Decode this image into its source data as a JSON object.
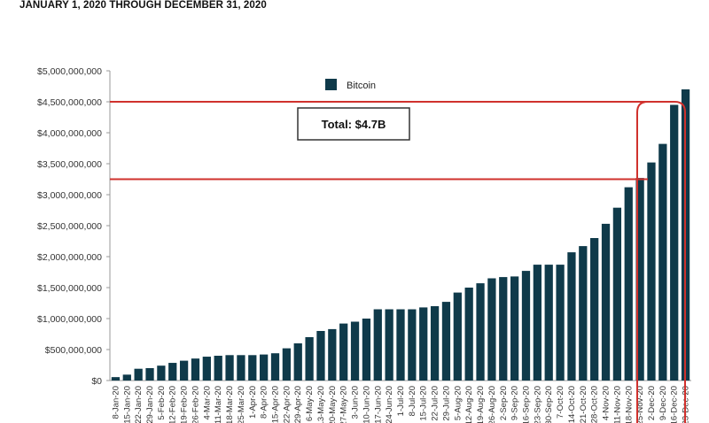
{
  "subtitle": "JANUARY 1, 2020 THROUGH DECEMBER 31, 2020",
  "colors": {
    "bar": "#0f3a4a",
    "annotation": "#d0312d",
    "grid": "#d9d9d9",
    "axis": "#999999"
  },
  "chart_data": {
    "type": "bar",
    "series": [
      {
        "name": "Bitcoin",
        "values": [
          55000000,
          95000000,
          190000000,
          200000000,
          240000000,
          285000000,
          320000000,
          355000000,
          385000000,
          400000000,
          410000000,
          410000000,
          410000000,
          420000000,
          440000000,
          520000000,
          600000000,
          700000000,
          800000000,
          830000000,
          920000000,
          950000000,
          1000000000,
          1150000000,
          1150000000,
          1150000000,
          1150000000,
          1180000000,
          1200000000,
          1270000000,
          1420000000,
          1500000000,
          1570000000,
          1650000000,
          1670000000,
          1680000000,
          1770000000,
          1870000000,
          1870000000,
          1870000000,
          2070000000,
          2170000000,
          2300000000,
          2530000000,
          2790000000,
          3120000000,
          3270000000,
          3520000000,
          3820000000,
          4450000000,
          4700000000
        ]
      }
    ],
    "categories": [
      "8-Jan-20",
      "15-Jan-20",
      "22-Jan-20",
      "29-Jan-20",
      "5-Feb-20",
      "12-Feb-20",
      "19-Feb-20",
      "26-Feb-20",
      "4-Mar-20",
      "11-Mar-20",
      "18-Mar-20",
      "25-Mar-20",
      "1-Apr-20",
      "8-Apr-20",
      "15-Apr-20",
      "22-Apr-20",
      "29-Apr-20",
      "6-May-20",
      "13-May-20",
      "20-May-20",
      "27-May-20",
      "3-Jun-20",
      "10-Jun-20",
      "17-Jun-20",
      "24-Jun-20",
      "1-Jul-20",
      "8-Jul-20",
      "15-Jul-20",
      "22-Jul-20",
      "29-Jul-20",
      "5-Aug-20",
      "12-Aug-20",
      "19-Aug-20",
      "26-Aug-20",
      "2-Sep-20",
      "9-Sep-20",
      "16-Sep-20",
      "23-Sep-20",
      "30-Sep-20",
      "7-Oct-20",
      "14-Oct-20",
      "21-Oct-20",
      "28-Oct-20",
      "4-Nov-20",
      "11-Nov-20",
      "18-Nov-20",
      "25-Nov-20",
      "2-Dec-20",
      "9-Dec-20",
      "16-Dec-20",
      "23-Dec-20"
    ],
    "y_ticks": [
      "$0",
      "$500,000,000",
      "$1,000,000,000",
      "$1,500,000,000",
      "$2,000,000,000",
      "$2,500,000,000",
      "$3,000,000,000",
      "$3,500,000,000",
      "$4,000,000,000",
      "$4,500,000,000",
      "$5,000,000,000"
    ],
    "ylim": [
      0,
      5000000000
    ],
    "grid": false,
    "legend": {
      "label": "Bitcoin",
      "position": "top-center"
    },
    "annotation": {
      "text": "Total: $4.7B",
      "line_levels": [
        4500000000,
        3250000000
      ]
    }
  }
}
